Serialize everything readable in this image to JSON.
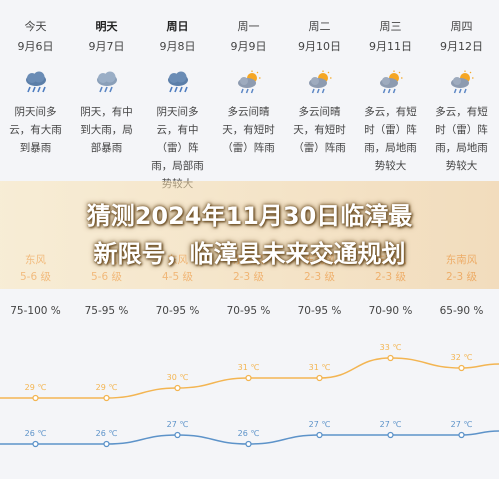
{
  "days": [
    {
      "name": "今天",
      "date": "9月6日",
      "bold": false,
      "weather_icon": "rain-heavy-icon",
      "desc": [
        "阴天间多",
        "云，有大雨",
        "到暴雨"
      ],
      "wind": [
        "东风",
        "5-6 级"
      ],
      "humidity": "75-100 %"
    },
    {
      "name": "明天",
      "date": "9月7日",
      "bold": true,
      "weather_icon": "rain-icon",
      "desc": [
        "阴天，有中",
        "到大雨，局",
        "部暴雨"
      ],
      "wind": [
        "东风",
        "5-6 级"
      ],
      "humidity": "75-95 %"
    },
    {
      "name": "周日",
      "date": "9月8日",
      "bold": true,
      "weather_icon": "rain-heavy-icon",
      "desc": [
        "阴天间多",
        "云，有中",
        "（雷）阵",
        "雨，局部雨",
        "势较大"
      ],
      "wind": [
        "东风",
        "4-5 级"
      ],
      "humidity": "70-95 %"
    },
    {
      "name": "周一",
      "date": "9月9日",
      "bold": false,
      "weather_icon": "sun-cloud-rain-icon",
      "desc": [
        "多云间晴",
        "天，有短时",
        "（雷）阵雨"
      ],
      "wind": [
        "东南风",
        "2-3 级"
      ],
      "humidity": "70-95 %"
    },
    {
      "name": "周二",
      "date": "9月10日",
      "bold": false,
      "weather_icon": "sun-cloud-rain-icon",
      "desc": [
        "多云间晴",
        "天，有短时",
        "（雷）阵雨"
      ],
      "wind": [
        "东南风",
        "2-3 级"
      ],
      "humidity": "70-95 %"
    },
    {
      "name": "周三",
      "date": "9月11日",
      "bold": false,
      "weather_icon": "sun-cloud-rain-icon",
      "desc": [
        "多云，有短",
        "时（雷）阵",
        "雨，局地雨",
        "势较大"
      ],
      "wind": [
        "东南风",
        "2-3 级"
      ],
      "humidity": "70-90 %"
    },
    {
      "name": "周四",
      "date": "9月12日",
      "bold": false,
      "weather_icon": "sun-cloud-rain-icon",
      "desc": [
        "多云，有短",
        "时（雷）阵",
        "雨，局地雨",
        "势较大"
      ],
      "wind": [
        "东南风",
        "2-3 级"
      ],
      "humidity": "65-90 %"
    }
  ],
  "title_lines": [
    "猜测2024年11月30日临漳最",
    "新限号，临漳县未来交通规划"
  ],
  "temperature": {
    "high": [
      29,
      29,
      30,
      31,
      31,
      33,
      32
    ],
    "low": [
      26,
      26,
      27,
      26,
      27,
      27,
      27
    ],
    "high_labels": [
      "29 ℃",
      "29 ℃",
      "30 ℃",
      "31 ℃",
      "31 ℃",
      "33 ℃",
      "32 ℃"
    ],
    "low_labels": [
      "26 ℃",
      "26 ℃",
      "27 ℃",
      "26 ℃",
      "27 ℃",
      "27 ℃",
      "27 ℃"
    ]
  },
  "colors": {
    "high_line": "#f3b552",
    "low_line": "#5d93c9",
    "wind_text": "#e98a3a",
    "banner_text": "#ffffff"
  }
}
